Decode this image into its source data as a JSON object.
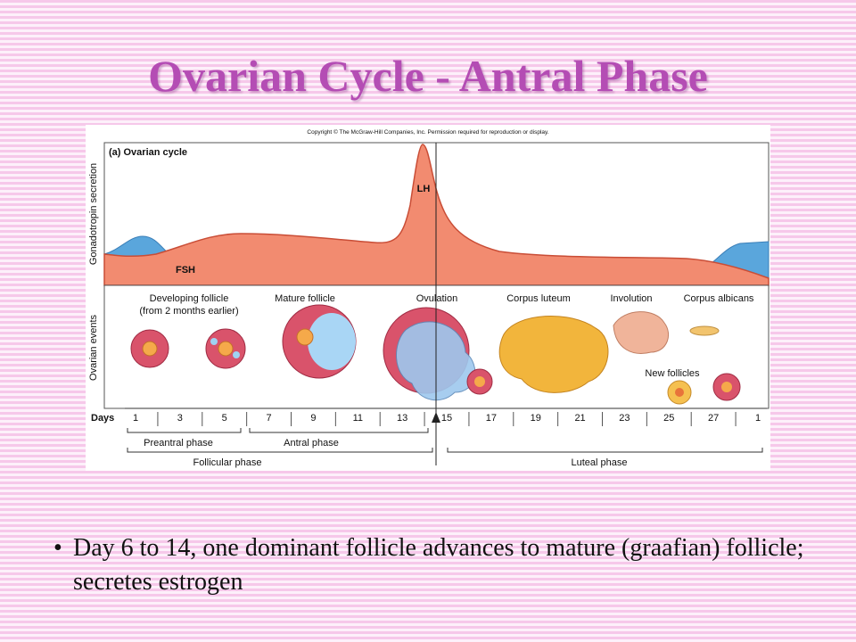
{
  "title": "Ovarian Cycle - Antral Phase",
  "figure": {
    "copyright": "Copyright © The McGraw-Hill Companies, Inc. Permission required for reproduction or display.",
    "panel_title": "(a) Ovarian cycle",
    "y_label_top": "Gonadotropin secretion",
    "y_label_bottom": "Ovarian events",
    "hormones": [
      "LH",
      "FSH"
    ],
    "events": [
      "Developing follicle",
      "(from 2 months earlier)",
      "Mature follicle",
      "Ovulation",
      "Corpus luteum",
      "Involution",
      "Corpus albicans",
      "New follicles"
    ],
    "days_label": "Days",
    "days": [
      1,
      3,
      5,
      7,
      9,
      11,
      13,
      15,
      17,
      19,
      21,
      23,
      25,
      27,
      1
    ],
    "phases": [
      "Preantral phase",
      "Antral phase",
      "Follicular phase",
      "Luteal phase"
    ]
  },
  "bullets": [
    "Day 6 to 14, one dominant follicle advances to mature (graafian) follicle; secretes estrogen"
  ]
}
